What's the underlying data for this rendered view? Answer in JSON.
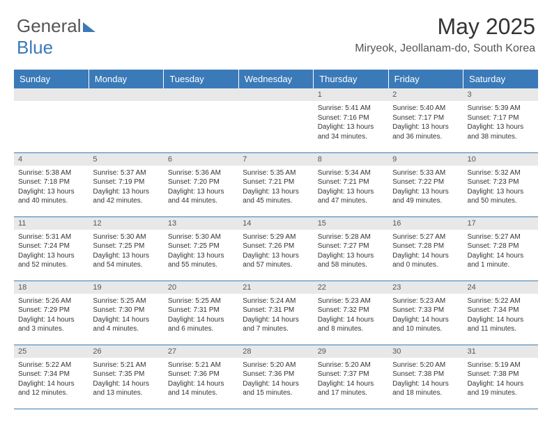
{
  "brand": {
    "part1": "General",
    "part2": "Blue"
  },
  "title": "May 2025",
  "location": "Miryeok, Jeollanam-do, South Korea",
  "colors": {
    "header_bg": "#3a7ab8",
    "header_text": "#ffffff",
    "daynum_bg": "#e8e8e8",
    "border": "#3a7ab8",
    "text": "#333333"
  },
  "weekdays": [
    "Sunday",
    "Monday",
    "Tuesday",
    "Wednesday",
    "Thursday",
    "Friday",
    "Saturday"
  ],
  "weeks": [
    [
      null,
      null,
      null,
      null,
      {
        "n": "1",
        "sr": "5:41 AM",
        "ss": "7:16 PM",
        "dl": "13 hours and 34 minutes."
      },
      {
        "n": "2",
        "sr": "5:40 AM",
        "ss": "7:17 PM",
        "dl": "13 hours and 36 minutes."
      },
      {
        "n": "3",
        "sr": "5:39 AM",
        "ss": "7:17 PM",
        "dl": "13 hours and 38 minutes."
      }
    ],
    [
      {
        "n": "4",
        "sr": "5:38 AM",
        "ss": "7:18 PM",
        "dl": "13 hours and 40 minutes."
      },
      {
        "n": "5",
        "sr": "5:37 AM",
        "ss": "7:19 PM",
        "dl": "13 hours and 42 minutes."
      },
      {
        "n": "6",
        "sr": "5:36 AM",
        "ss": "7:20 PM",
        "dl": "13 hours and 44 minutes."
      },
      {
        "n": "7",
        "sr": "5:35 AM",
        "ss": "7:21 PM",
        "dl": "13 hours and 45 minutes."
      },
      {
        "n": "8",
        "sr": "5:34 AM",
        "ss": "7:21 PM",
        "dl": "13 hours and 47 minutes."
      },
      {
        "n": "9",
        "sr": "5:33 AM",
        "ss": "7:22 PM",
        "dl": "13 hours and 49 minutes."
      },
      {
        "n": "10",
        "sr": "5:32 AM",
        "ss": "7:23 PM",
        "dl": "13 hours and 50 minutes."
      }
    ],
    [
      {
        "n": "11",
        "sr": "5:31 AM",
        "ss": "7:24 PM",
        "dl": "13 hours and 52 minutes."
      },
      {
        "n": "12",
        "sr": "5:30 AM",
        "ss": "7:25 PM",
        "dl": "13 hours and 54 minutes."
      },
      {
        "n": "13",
        "sr": "5:30 AM",
        "ss": "7:25 PM",
        "dl": "13 hours and 55 minutes."
      },
      {
        "n": "14",
        "sr": "5:29 AM",
        "ss": "7:26 PM",
        "dl": "13 hours and 57 minutes."
      },
      {
        "n": "15",
        "sr": "5:28 AM",
        "ss": "7:27 PM",
        "dl": "13 hours and 58 minutes."
      },
      {
        "n": "16",
        "sr": "5:27 AM",
        "ss": "7:28 PM",
        "dl": "14 hours and 0 minutes."
      },
      {
        "n": "17",
        "sr": "5:27 AM",
        "ss": "7:28 PM",
        "dl": "14 hours and 1 minute."
      }
    ],
    [
      {
        "n": "18",
        "sr": "5:26 AM",
        "ss": "7:29 PM",
        "dl": "14 hours and 3 minutes."
      },
      {
        "n": "19",
        "sr": "5:25 AM",
        "ss": "7:30 PM",
        "dl": "14 hours and 4 minutes."
      },
      {
        "n": "20",
        "sr": "5:25 AM",
        "ss": "7:31 PM",
        "dl": "14 hours and 6 minutes."
      },
      {
        "n": "21",
        "sr": "5:24 AM",
        "ss": "7:31 PM",
        "dl": "14 hours and 7 minutes."
      },
      {
        "n": "22",
        "sr": "5:23 AM",
        "ss": "7:32 PM",
        "dl": "14 hours and 8 minutes."
      },
      {
        "n": "23",
        "sr": "5:23 AM",
        "ss": "7:33 PM",
        "dl": "14 hours and 10 minutes."
      },
      {
        "n": "24",
        "sr": "5:22 AM",
        "ss": "7:34 PM",
        "dl": "14 hours and 11 minutes."
      }
    ],
    [
      {
        "n": "25",
        "sr": "5:22 AM",
        "ss": "7:34 PM",
        "dl": "14 hours and 12 minutes."
      },
      {
        "n": "26",
        "sr": "5:21 AM",
        "ss": "7:35 PM",
        "dl": "14 hours and 13 minutes."
      },
      {
        "n": "27",
        "sr": "5:21 AM",
        "ss": "7:36 PM",
        "dl": "14 hours and 14 minutes."
      },
      {
        "n": "28",
        "sr": "5:20 AM",
        "ss": "7:36 PM",
        "dl": "14 hours and 15 minutes."
      },
      {
        "n": "29",
        "sr": "5:20 AM",
        "ss": "7:37 PM",
        "dl": "14 hours and 17 minutes."
      },
      {
        "n": "30",
        "sr": "5:20 AM",
        "ss": "7:38 PM",
        "dl": "14 hours and 18 minutes."
      },
      {
        "n": "31",
        "sr": "5:19 AM",
        "ss": "7:38 PM",
        "dl": "14 hours and 19 minutes."
      }
    ]
  ],
  "labels": {
    "sunrise": "Sunrise: ",
    "sunset": "Sunset: ",
    "daylight": "Daylight: "
  }
}
